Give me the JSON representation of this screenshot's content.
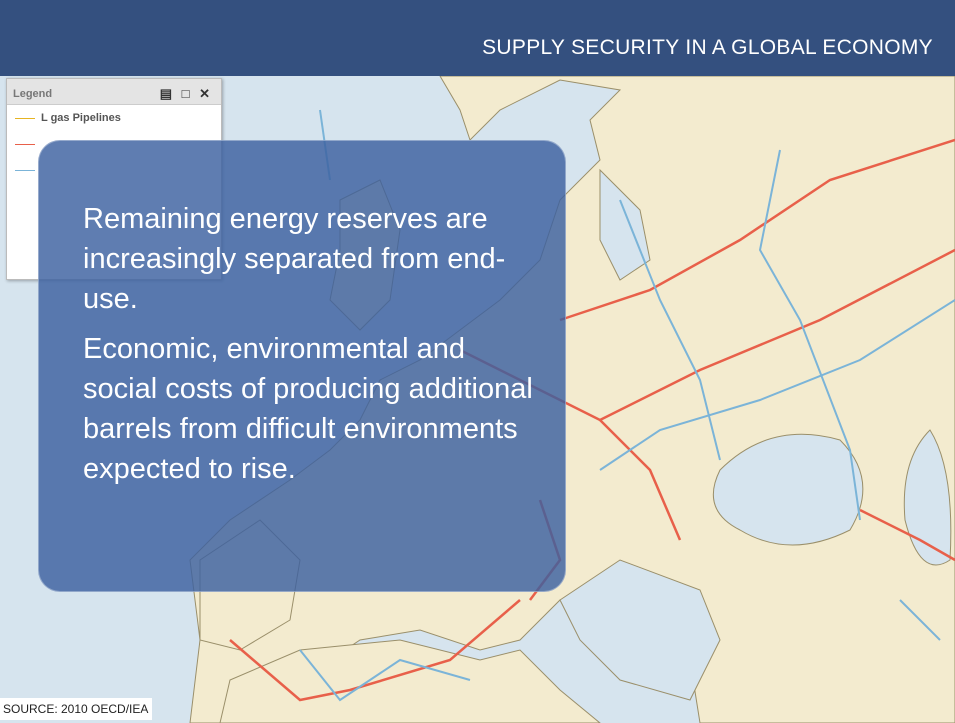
{
  "header": {
    "title": "SUPPLY SECURITY IN A GLOBAL ECONOMY"
  },
  "legend": {
    "title": "Legend",
    "items": [
      "L gas Pipelines"
    ]
  },
  "callout": {
    "paragraphs": [
      "Remaining energy reserves are increasingly separated from end-use.",
      "Economic, environmental and social costs of producing additional barrels from difficult environments expected to rise."
    ]
  },
  "source": "SOURCE: 2010 OECD/IEA"
}
